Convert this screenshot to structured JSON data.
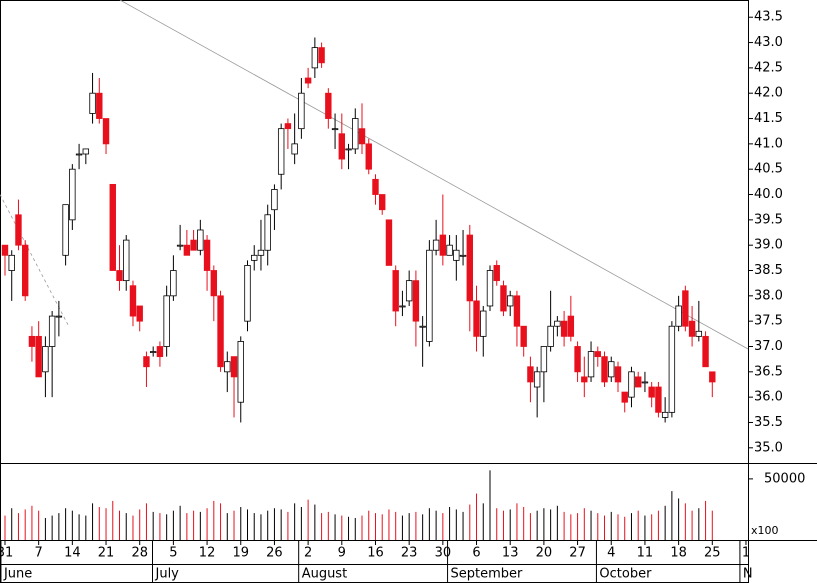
{
  "chart_data": {
    "type": "candlestick",
    "xlim": [
      -0.74,
      110.3
    ],
    "ylim": [
      34.7,
      43.84
    ],
    "yticks": [
      {
        "value": 35,
        "label": "35.0"
      },
      35.5,
      {
        "value": 36,
        "label": "36.0"
      },
      36.5,
      {
        "value": 37,
        "label": "37.0"
      },
      37.5,
      {
        "value": 38,
        "label": "38.0"
      },
      38.5,
      {
        "value": 39,
        "label": "39.0"
      },
      39.5,
      {
        "value": 40,
        "label": "40.0"
      },
      40.5,
      {
        "value": 41,
        "label": "41.0"
      },
      41.5,
      {
        "value": 42,
        "label": "42.0"
      },
      42.5,
      {
        "value": 43,
        "label": "43.0"
      },
      43.5
    ],
    "xticks": [
      {
        "value": 0,
        "label": "31"
      },
      {
        "value": 5,
        "label": "7"
      },
      {
        "value": 10,
        "label": "14"
      },
      {
        "value": 15,
        "label": "21"
      },
      {
        "value": 20,
        "label": "28"
      },
      {
        "value": 25,
        "label": "5"
      },
      {
        "value": 30,
        "label": "12"
      },
      {
        "value": 35,
        "label": "19"
      },
      {
        "value": 40,
        "label": "26"
      },
      {
        "value": 45,
        "label": "2"
      },
      {
        "value": 50,
        "label": "9"
      },
      {
        "value": 55,
        "label": "16"
      },
      {
        "value": 60,
        "label": "23"
      },
      {
        "value": 65,
        "label": "30"
      },
      {
        "value": 70,
        "label": "6"
      },
      {
        "value": 75,
        "label": "13"
      },
      {
        "value": 80,
        "label": "20"
      },
      {
        "value": 85,
        "label": "27"
      },
      {
        "value": 90,
        "label": "4"
      },
      {
        "value": 95,
        "label": "11"
      },
      {
        "value": 100,
        "label": "18"
      },
      {
        "value": 105,
        "label": "25"
      },
      {
        "value": 110,
        "label": "1"
      }
    ],
    "month_labels": [
      {
        "value": -0.6,
        "label": "June"
      },
      {
        "value": 21.9,
        "label": "July"
      },
      {
        "value": 43.6,
        "label": "August"
      },
      {
        "value": 65.7,
        "label": "September"
      },
      {
        "value": 87.8,
        "label": "October"
      },
      {
        "value": 109.1,
        "label": "N"
      }
    ],
    "up_color": "#ffffff",
    "down_color": "#e8101c",
    "ohlc": [
      [
        39.0,
        39.0,
        38.4,
        38.8
      ],
      [
        38.5,
        38.9,
        37.9,
        38.8
      ],
      [
        39.6,
        39.9,
        38.9,
        39.0
      ],
      [
        39.0,
        39.1,
        37.9,
        38.0
      ],
      [
        37.2,
        37.4,
        36.7,
        37.0
      ],
      [
        37.2,
        37.5,
        36.4,
        36.4
      ],
      [
        36.5,
        37.2,
        36.0,
        37.0
      ],
      [
        37.0,
        37.7,
        36.0,
        37.6
      ],
      [
        37.6,
        37.9,
        37.2,
        37.6
      ],
      [
        38.8,
        39.8,
        38.6,
        39.8
      ],
      [
        39.5,
        40.6,
        39.3,
        40.5
      ],
      [
        40.8,
        41.0,
        40.5,
        40.8
      ],
      [
        40.8,
        40.9,
        40.6,
        40.9
      ],
      [
        41.6,
        42.4,
        41.4,
        42.0
      ],
      [
        42.0,
        42.3,
        41.4,
        41.5
      ],
      [
        41.5,
        41.5,
        40.8,
        41.0
      ],
      [
        40.2,
        40.2,
        38.5,
        38.5
      ],
      [
        38.5,
        39.0,
        38.1,
        38.3
      ],
      [
        38.3,
        39.2,
        38.1,
        39.1
      ],
      [
        38.2,
        38.3,
        37.4,
        37.6
      ],
      [
        37.8,
        37.8,
        37.3,
        37.5
      ],
      [
        36.8,
        36.9,
        36.2,
        36.6
      ],
      [
        36.9,
        37.0,
        36.8,
        36.9
      ],
      [
        37.0,
        37.1,
        36.6,
        36.8
      ],
      [
        37.0,
        38.2,
        36.8,
        38.0
      ],
      [
        38.0,
        38.8,
        37.9,
        38.5
      ],
      [
        39.0,
        39.4,
        38.9,
        39.0
      ],
      [
        39.0,
        39.3,
        38.8,
        38.8
      ],
      [
        39.1,
        39.3,
        38.9,
        38.9
      ],
      [
        38.9,
        39.5,
        38.8,
        39.3
      ],
      [
        39.1,
        39.2,
        38.1,
        38.5
      ],
      [
        38.5,
        38.6,
        37.5,
        38.0
      ],
      [
        38.0,
        38.1,
        36.5,
        36.6
      ],
      [
        36.5,
        36.9,
        36.1,
        36.7
      ],
      [
        36.8,
        36.8,
        35.6,
        36.4
      ],
      [
        35.9,
        37.2,
        35.5,
        37.1
      ],
      [
        37.5,
        38.7,
        37.3,
        38.6
      ],
      [
        38.7,
        39.0,
        38.5,
        38.8
      ],
      [
        38.8,
        39.5,
        38.5,
        38.9
      ],
      [
        38.9,
        39.8,
        38.6,
        39.6
      ],
      [
        39.7,
        40.2,
        39.3,
        40.1
      ],
      [
        40.4,
        41.4,
        40.1,
        41.3
      ],
      [
        41.4,
        41.5,
        40.9,
        41.3
      ],
      [
        40.8,
        41.6,
        40.6,
        41.0
      ],
      [
        41.3,
        42.3,
        41.1,
        42.0
      ],
      [
        42.3,
        42.5,
        42.1,
        42.2
      ],
      [
        42.5,
        43.1,
        42.3,
        42.9
      ],
      [
        42.9,
        43.0,
        42.5,
        42.6
      ],
      [
        42.0,
        42.1,
        41.3,
        41.5
      ],
      [
        41.3,
        41.6,
        40.9,
        41.3
      ],
      [
        41.2,
        41.6,
        40.5,
        40.7
      ],
      [
        40.9,
        41.0,
        40.5,
        40.9
      ],
      [
        40.9,
        41.7,
        40.8,
        41.5
      ],
      [
        41.3,
        41.8,
        40.8,
        41.0
      ],
      [
        41.0,
        41.1,
        40.4,
        40.5
      ],
      [
        40.3,
        40.4,
        39.8,
        40.0
      ],
      [
        40.0,
        40.0,
        39.6,
        39.7
      ],
      [
        39.5,
        39.5,
        38.6,
        38.6
      ],
      [
        38.5,
        38.6,
        37.4,
        37.7
      ],
      [
        37.8,
        38.1,
        37.6,
        37.8
      ],
      [
        37.9,
        38.5,
        37.8,
        38.3
      ],
      [
        38.3,
        38.5,
        37.0,
        37.5
      ],
      [
        37.4,
        37.6,
        36.6,
        37.4
      ],
      [
        37.1,
        39.1,
        37.0,
        38.9
      ],
      [
        38.9,
        39.5,
        38.8,
        39.1
      ],
      [
        39.2,
        40.0,
        38.6,
        38.8
      ],
      [
        38.8,
        39.2,
        38.8,
        39.0
      ],
      [
        38.7,
        39.2,
        38.3,
        38.9
      ],
      [
        38.8,
        39.3,
        38.6,
        38.8
      ],
      [
        39.2,
        39.4,
        37.3,
        37.9
      ],
      [
        37.9,
        38.2,
        36.9,
        37.2
      ],
      [
        37.2,
        37.8,
        36.8,
        37.7
      ],
      [
        37.8,
        38.6,
        37.7,
        38.5
      ],
      [
        38.6,
        38.7,
        38.2,
        38.3
      ],
      [
        38.2,
        38.3,
        37.6,
        37.7
      ],
      [
        37.8,
        38.1,
        37.6,
        38.0
      ],
      [
        38.0,
        38.1,
        37.0,
        37.4
      ],
      [
        37.4,
        37.4,
        36.8,
        37.0
      ],
      [
        36.6,
        36.8,
        35.9,
        36.3
      ],
      [
        36.2,
        36.6,
        35.6,
        36.5
      ],
      [
        36.5,
        37.0,
        35.9,
        37.0
      ],
      [
        37.0,
        38.1,
        36.9,
        37.4
      ],
      [
        37.4,
        37.6,
        37.2,
        37.5
      ],
      [
        37.5,
        37.7,
        37.0,
        37.2
      ],
      [
        37.6,
        38.0,
        37.1,
        37.2
      ],
      [
        37.0,
        37.1,
        36.3,
        36.5
      ],
      [
        36.4,
        36.8,
        36.0,
        36.3
      ],
      [
        36.4,
        37.1,
        36.3,
        36.9
      ],
      [
        36.9,
        37.0,
        36.6,
        36.8
      ],
      [
        36.8,
        36.9,
        36.2,
        36.3
      ],
      [
        36.4,
        36.8,
        36.3,
        36.7
      ],
      [
        36.6,
        36.7,
        36.1,
        36.3
      ],
      [
        36.1,
        36.1,
        35.7,
        35.9
      ],
      [
        36.0,
        36.6,
        35.8,
        36.5
      ],
      [
        36.4,
        36.5,
        36.2,
        36.2
      ],
      [
        36.3,
        36.5,
        36.1,
        36.3
      ],
      [
        36.2,
        36.3,
        35.8,
        36.0
      ],
      [
        36.2,
        36.3,
        35.6,
        35.7
      ],
      [
        35.6,
        36.0,
        35.5,
        35.7
      ],
      [
        35.7,
        37.5,
        35.6,
        37.4
      ],
      [
        37.4,
        38.0,
        37.3,
        37.8
      ],
      [
        38.1,
        38.2,
        37.3,
        37.4
      ],
      [
        37.5,
        37.8,
        37.0,
        37.2
      ],
      [
        37.2,
        37.9,
        37.1,
        37.3
      ],
      [
        37.2,
        37.3,
        36.6,
        36.6
      ],
      [
        36.5,
        36.5,
        36.0,
        36.3
      ]
    ],
    "volume": [
      20000,
      26000,
      22000,
      25000,
      28000,
      24000,
      18000,
      20000,
      22000,
      26000,
      24000,
      21000,
      20000,
      30000,
      27000,
      26000,
      32000,
      24000,
      22000,
      20000,
      25000,
      30000,
      23000,
      22000,
      21000,
      24000,
      28000,
      22000,
      24000,
      23000,
      26000,
      32000,
      30000,
      22000,
      24000,
      27000,
      25000,
      22000,
      21000,
      24000,
      26000,
      25000,
      23000,
      30000,
      27000,
      33000,
      29000,
      22000,
      23000,
      21000,
      20000,
      19000,
      18000,
      20000,
      24000,
      22000,
      21000,
      25000,
      23000,
      20000,
      22000,
      23000,
      21000,
      26000,
      24000,
      22000,
      27000,
      25000,
      23000,
      29000,
      38000,
      30000,
      57000,
      26000,
      24000,
      25000,
      30000,
      27000,
      22000,
      24000,
      26000,
      25000,
      28000,
      23000,
      21000,
      22000,
      26000,
      24000,
      22000,
      20000,
      23000,
      21000,
      19000,
      22000,
      24000,
      20000,
      21000,
      24000,
      28000,
      40000,
      34000,
      30000,
      24000,
      26000,
      32000,
      24000
    ],
    "volume_lim": [
      0,
      63000
    ],
    "volume_ticks": [
      50000
    ],
    "volume_unit": "x100",
    "trendlines": [
      {
        "start": [
          17.07,
          43.84
        ],
        "end": [
          110.3,
          36.95
        ],
        "style": "solid"
      },
      {
        "start": [
          -0.74,
          40.0
        ],
        "end": [
          9.35,
          37.43
        ],
        "style": "dashed"
      }
    ]
  }
}
